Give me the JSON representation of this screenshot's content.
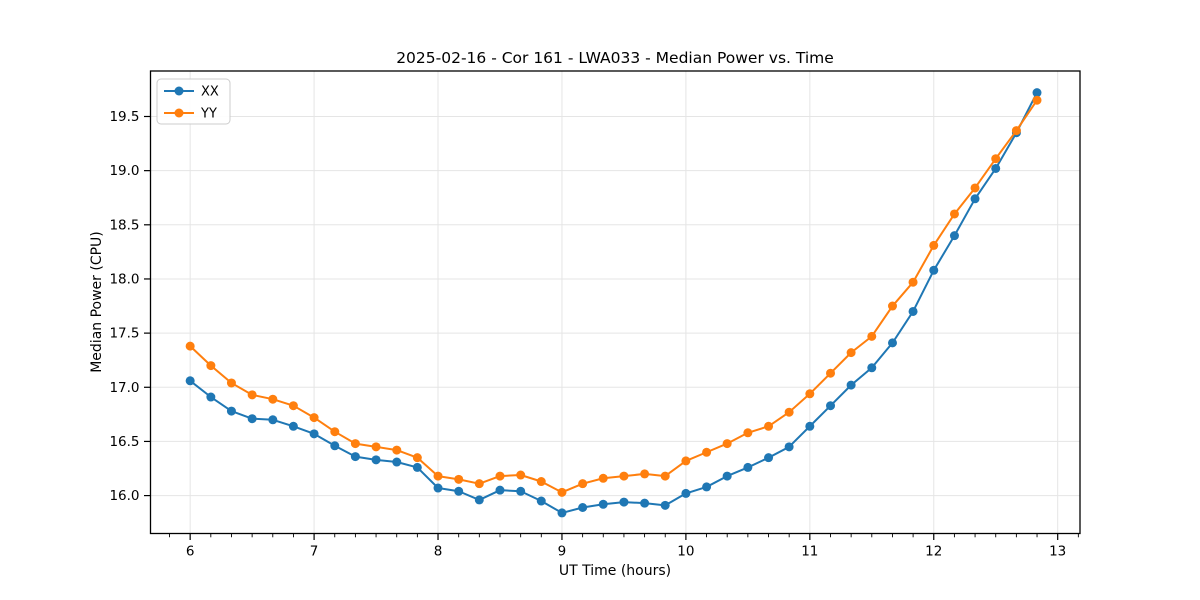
{
  "chart_data": {
    "type": "line",
    "title": "2025-02-16 - Cor 161 - LWA033 - Median Power vs. Time",
    "xlabel": "UT Time (hours)",
    "ylabel": "Median Power (CPU)",
    "xlim": [
      5.68,
      13.18
    ],
    "ylim": [
      15.65,
      19.92
    ],
    "x_ticks": [
      6,
      7,
      8,
      9,
      10,
      11,
      12,
      13
    ],
    "y_ticks": [
      16.0,
      16.5,
      17.0,
      17.5,
      18.0,
      18.5,
      19.0,
      19.5
    ],
    "minor_ticks_x_per_hour": 6,
    "grid": true,
    "grid_color": "#e5e5e5",
    "spine_color": "#000000",
    "legend_position": "upper-left",
    "x": [
      6.0,
      6.167,
      6.333,
      6.5,
      6.667,
      6.833,
      7.0,
      7.167,
      7.333,
      7.5,
      7.667,
      7.833,
      8.0,
      8.167,
      8.333,
      8.5,
      8.667,
      8.833,
      9.0,
      9.167,
      9.333,
      9.5,
      9.667,
      9.833,
      10.0,
      10.167,
      10.333,
      10.5,
      10.667,
      10.833,
      11.0,
      11.167,
      11.333,
      11.5,
      11.667,
      11.833,
      12.0,
      12.167,
      12.333,
      12.5,
      12.667,
      12.833
    ],
    "series": [
      {
        "name": "XX",
        "color": "#1f77b4",
        "marker": "circle",
        "values": [
          17.06,
          16.91,
          16.78,
          16.71,
          16.7,
          16.64,
          16.57,
          16.46,
          16.36,
          16.33,
          16.31,
          16.26,
          16.07,
          16.04,
          15.96,
          16.05,
          16.04,
          15.95,
          15.84,
          15.89,
          15.92,
          15.94,
          15.93,
          15.91,
          16.02,
          16.08,
          16.18,
          16.26,
          16.35,
          16.45,
          16.64,
          16.83,
          17.02,
          17.18,
          17.41,
          17.7,
          18.08,
          18.4,
          18.74,
          19.02,
          19.35,
          19.72
        ]
      },
      {
        "name": "YY",
        "color": "#ff7f0e",
        "marker": "circle",
        "values": [
          17.38,
          17.2,
          17.04,
          16.93,
          16.89,
          16.83,
          16.72,
          16.59,
          16.48,
          16.45,
          16.42,
          16.35,
          16.18,
          16.15,
          16.11,
          16.18,
          16.19,
          16.13,
          16.03,
          16.11,
          16.16,
          16.18,
          16.2,
          16.18,
          16.32,
          16.4,
          16.48,
          16.58,
          16.64,
          16.77,
          16.94,
          17.13,
          17.32,
          17.47,
          17.75,
          17.97,
          18.31,
          18.6,
          18.84,
          19.11,
          19.37,
          19.65
        ]
      }
    ]
  }
}
